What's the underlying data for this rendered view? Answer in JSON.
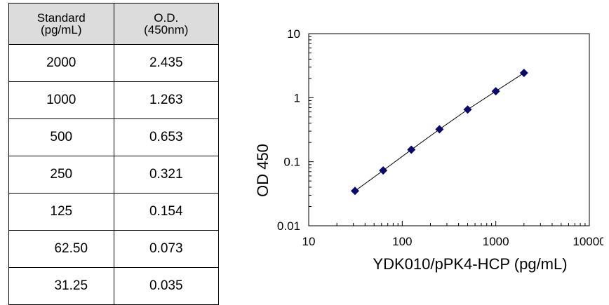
{
  "table": {
    "header": {
      "standard": [
        "Standard",
        "(pg/mL)"
      ],
      "od": [
        "O.D.",
        "(450nm)"
      ]
    },
    "rows": [
      {
        "standard": "2000",
        "od": "2.435"
      },
      {
        "standard": "1000",
        "od": "1.263"
      },
      {
        "standard": "500",
        "od": "0.653"
      },
      {
        "standard": "250",
        "od": "0.321"
      },
      {
        "standard": "125",
        "od": "0.154"
      },
      {
        "standard": "62.50",
        "od": "0.073"
      },
      {
        "standard": "31.25",
        "od": "0.035"
      }
    ]
  },
  "chart_data": {
    "type": "scatter",
    "xscale": "log",
    "yscale": "log",
    "xlim": [
      10,
      10000
    ],
    "ylim": [
      0.01,
      10
    ],
    "xticks": [
      "10",
      "100",
      "1000",
      "10000"
    ],
    "yticks": [
      "0.01",
      "0.1",
      "1",
      "10"
    ],
    "xlabel": "YDK010/pPK4-HCP (pg/mL)",
    "ylabel": "OD 450",
    "grid": false,
    "marker_color": "#0a0a6e",
    "line_color": "#000000",
    "series": [
      {
        "x": [
          31.25,
          62.5,
          125,
          250,
          500,
          1000,
          2000
        ],
        "y": [
          0.035,
          0.073,
          0.154,
          0.321,
          0.653,
          1.263,
          2.435
        ]
      }
    ]
  }
}
